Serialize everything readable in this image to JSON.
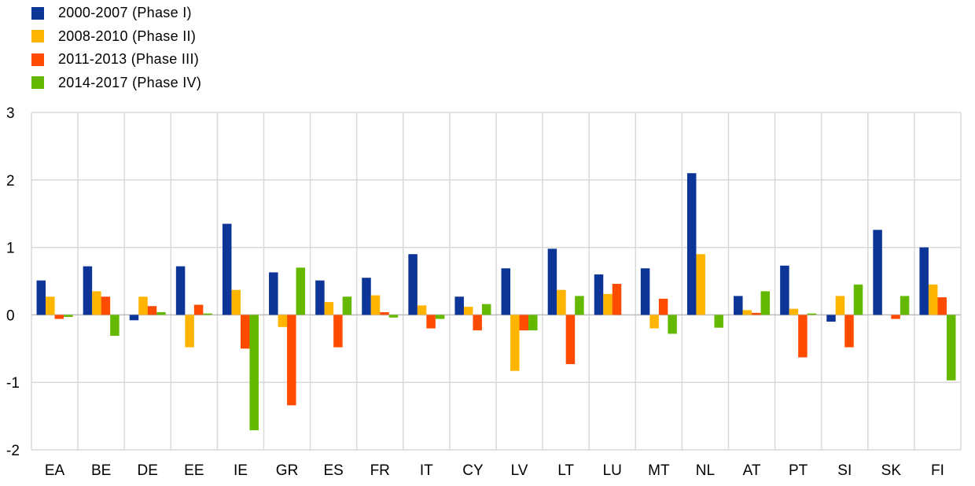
{
  "chart_data": {
    "type": "bar",
    "title": "",
    "xlabel": "",
    "ylabel": "",
    "ylim": [
      -2,
      3
    ],
    "yticks": [
      "3",
      "2",
      "1",
      "0",
      "-1",
      "-2"
    ],
    "grid": true,
    "legend_position": "top-left",
    "categories": [
      "EA",
      "BE",
      "DE",
      "EE",
      "IE",
      "GR",
      "ES",
      "FR",
      "IT",
      "CY",
      "LV",
      "LT",
      "LU",
      "MT",
      "NL",
      "AT",
      "PT",
      "SI",
      "SK",
      "FI"
    ],
    "series": [
      {
        "name": "2000-2007 (Phase I)",
        "color": "#0d3497",
        "values": [
          0.51,
          0.72,
          -0.08,
          0.72,
          1.35,
          0.63,
          0.51,
          0.55,
          0.9,
          0.27,
          0.69,
          0.98,
          0.6,
          0.69,
          2.1,
          0.28,
          0.73,
          -0.1,
          1.26,
          1.0
        ]
      },
      {
        "name": "2008-2010 (Phase II)",
        "color": "#ffb400",
        "values": [
          0.27,
          0.35,
          0.27,
          -0.48,
          0.37,
          -0.18,
          0.19,
          0.29,
          0.14,
          0.12,
          -0.83,
          0.37,
          0.31,
          -0.2,
          0.9,
          0.07,
          0.09,
          0.28,
          0.0,
          0.45
        ]
      },
      {
        "name": "2011-2013 (Phase III)",
        "color": "#ff4b00",
        "values": [
          -0.06,
          0.27,
          0.13,
          0.15,
          -0.5,
          -1.34,
          -0.48,
          0.04,
          -0.2,
          -0.23,
          -0.23,
          -0.73,
          0.46,
          0.24,
          0.0,
          0.03,
          -0.63,
          -0.48,
          -0.06,
          0.26
        ]
      },
      {
        "name": "2014-2017 (Phase IV)",
        "color": "#65b800",
        "values": [
          -0.03,
          -0.31,
          0.04,
          0.02,
          -1.71,
          0.7,
          0.27,
          -0.04,
          -0.06,
          0.16,
          -0.23,
          0.28,
          0.0,
          -0.28,
          -0.19,
          0.35,
          0.02,
          0.45,
          0.28,
          -0.97
        ]
      }
    ]
  }
}
